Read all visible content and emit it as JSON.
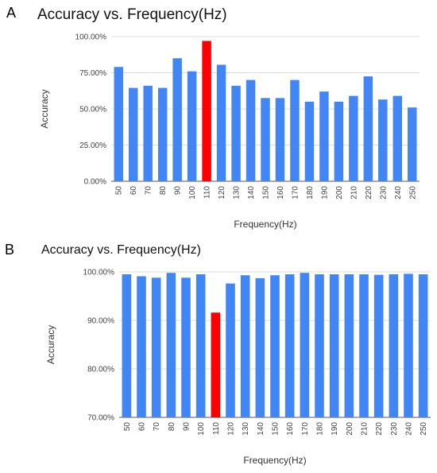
{
  "chart_data": [
    {
      "panel_label": "A",
      "type": "bar",
      "title": "Accuracy vs. Frequency(Hz)",
      "xlabel": "Frequency(Hz)",
      "ylabel": "Accuracy",
      "categories": [
        "50",
        "60",
        "70",
        "80",
        "90",
        "100",
        "110",
        "120",
        "130",
        "140",
        "150",
        "160",
        "170",
        "180",
        "190",
        "200",
        "210",
        "220",
        "230",
        "240",
        "250"
      ],
      "values": [
        79,
        64.5,
        66,
        64.5,
        85,
        76,
        97,
        80.5,
        66,
        70,
        57.5,
        57.5,
        70,
        55,
        62,
        55,
        59,
        72.5,
        56.5,
        59,
        51
      ],
      "highlight_index": 6,
      "ylim": [
        0,
        100
      ],
      "yticks": [
        "0.00%",
        "25.00%",
        "50.00%",
        "75.00%",
        "100.00%"
      ],
      "ytick_values": [
        0,
        25,
        50,
        75,
        100
      ],
      "grid": true,
      "bar_color": "#4285f4",
      "highlight_color": "#ff0000"
    },
    {
      "panel_label": "B",
      "type": "bar",
      "title": "Accuracy vs. Frequency(Hz)",
      "xlabel": "Frequency(Hz)",
      "ylabel": "Accuracy",
      "categories": [
        "50",
        "60",
        "70",
        "80",
        "90",
        "100",
        "110",
        "120",
        "130",
        "140",
        "150",
        "160",
        "170",
        "180",
        "190",
        "200",
        "210",
        "220",
        "230",
        "240",
        "250"
      ],
      "values": [
        99.5,
        99.1,
        98.8,
        99.8,
        98.8,
        99.5,
        91.6,
        97.6,
        99.3,
        98.7,
        99.3,
        99.5,
        99.8,
        99.5,
        99.5,
        99.5,
        99.5,
        99.4,
        99.5,
        99.6,
        99.5
      ],
      "highlight_index": 6,
      "ylim": [
        70,
        100
      ],
      "yticks": [
        "70.00%",
        "80.00%",
        "90.00%",
        "100.00%"
      ],
      "ytick_values": [
        70,
        80,
        90,
        100
      ],
      "grid": true,
      "bar_color": "#4285f4",
      "highlight_color": "#ff0000"
    }
  ]
}
